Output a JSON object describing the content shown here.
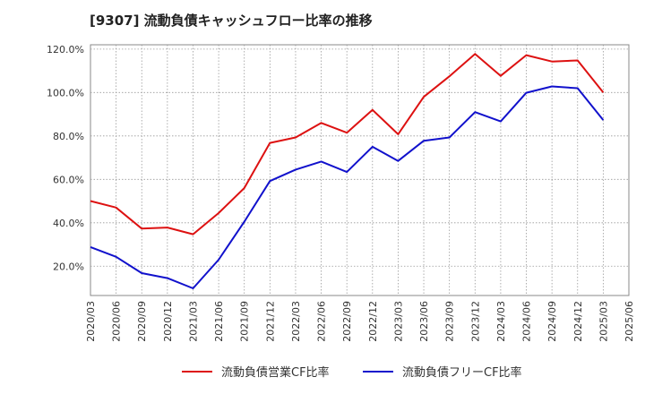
{
  "chart_data": {
    "type": "line",
    "title": "[9307]  流動負債キャッシュフロー比率の推移",
    "xlabel": "",
    "ylabel": "",
    "ylim": [
      6.5,
      122
    ],
    "y_ticks": [
      20,
      40,
      60,
      80,
      100,
      120
    ],
    "y_tick_labels": [
      "20.0%",
      "40.0%",
      "60.0%",
      "80.0%",
      "100.0%",
      "120.0%"
    ],
    "categories": [
      "2020/03",
      "2020/06",
      "2020/09",
      "2020/12",
      "2021/03",
      "2021/06",
      "2021/09",
      "2021/12",
      "2022/03",
      "2022/06",
      "2022/09",
      "2022/12",
      "2023/03",
      "2023/06",
      "2023/09",
      "2023/12",
      "2024/03",
      "2024/06",
      "2024/09",
      "2024/12",
      "2025/03",
      "2025/06"
    ],
    "grid": true,
    "legend_position": "bottom",
    "series": [
      {
        "name": "流動負債営業CF比率",
        "color": "#dd1111",
        "values": [
          50.0,
          47.0,
          37.3,
          37.8,
          34.7,
          44.5,
          56.0,
          76.8,
          79.3,
          86.0,
          81.5,
          92.0,
          80.8,
          98.0,
          107.5,
          117.8,
          107.7,
          117.2,
          114.3,
          114.8,
          100.0,
          null
        ]
      },
      {
        "name": "流動負債フリーCF比率",
        "color": "#1111cc",
        "values": [
          28.8,
          24.3,
          16.8,
          14.5,
          9.8,
          23.0,
          40.5,
          59.2,
          64.5,
          68.2,
          63.4,
          75.0,
          68.5,
          77.8,
          79.3,
          91.0,
          86.7,
          99.9,
          102.8,
          102.0,
          87.3,
          null
        ]
      }
    ]
  }
}
